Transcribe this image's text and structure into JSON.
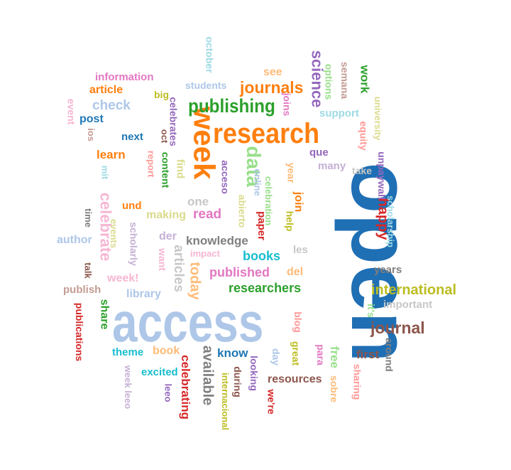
{
  "words": [
    {
      "text": "open",
      "color": "#1f6fb4"
    },
    {
      "text": "access",
      "color": "#aec7e8"
    },
    {
      "text": "week",
      "color": "#ff7f0e"
    },
    {
      "text": "research",
      "color": "#ff7f0e"
    },
    {
      "text": "publishing",
      "color": "#2ca02c"
    },
    {
      "text": "journals",
      "color": "#ff7f0e"
    },
    {
      "text": "data",
      "color": "#98df8a"
    },
    {
      "text": "journal",
      "color": "#8c564b"
    },
    {
      "text": "international",
      "color": "#bcbd22"
    },
    {
      "text": "science",
      "color": "#9467bd"
    },
    {
      "text": "researchers",
      "color": "#2ca02c"
    },
    {
      "text": "published",
      "color": "#e377c2"
    },
    {
      "text": "books",
      "color": "#17becf"
    },
    {
      "text": "knowledge",
      "color": "#7f7f7f"
    },
    {
      "text": "happy",
      "color": "#d62728"
    },
    {
      "text": "celebrate",
      "color": "#f7b6d2"
    },
    {
      "text": "available",
      "color": "#7f7f7f"
    },
    {
      "text": "celebrating",
      "color": "#d62728"
    },
    {
      "text": "resources",
      "color": "#8c564b"
    },
    {
      "text": "information",
      "color": "#e377c2"
    },
    {
      "text": "article",
      "color": "#ff7f0e"
    },
    {
      "text": "check",
      "color": "#aec7e8"
    },
    {
      "text": "students",
      "color": "#aec7e8"
    },
    {
      "text": "post",
      "color": "#1f77b4"
    },
    {
      "text": "next",
      "color": "#1f77b4"
    },
    {
      "text": "learn",
      "color": "#ff7f0e"
    },
    {
      "text": "und",
      "color": "#ff7f0e"
    },
    {
      "text": "making",
      "color": "#dbdb8d"
    },
    {
      "text": "read",
      "color": "#e377c2"
    },
    {
      "text": "one",
      "color": "#c7c7c7"
    },
    {
      "text": "author",
      "color": "#aec7e8"
    },
    {
      "text": "der",
      "color": "#c5b0d5"
    },
    {
      "text": "impact",
      "color": "#f7b6d2"
    },
    {
      "text": "week!",
      "color": "#f7b6d2"
    },
    {
      "text": "library",
      "color": "#aec7e8"
    },
    {
      "text": "publish",
      "color": "#c49c94"
    },
    {
      "text": "theme",
      "color": "#17becf"
    },
    {
      "text": "book",
      "color": "#ffbb78"
    },
    {
      "text": "know",
      "color": "#1f77b4"
    },
    {
      "text": "excited",
      "color": "#17becf"
    },
    {
      "text": "first",
      "color": "#8c564b"
    },
    {
      "text": "years",
      "color": "#7f7f7f"
    },
    {
      "text": "important",
      "color": "#c7c7c7"
    },
    {
      "text": "support",
      "color": "#9edae5"
    },
    {
      "text": "que",
      "color": "#9467bd"
    },
    {
      "text": "many",
      "color": "#c5b0d5"
    },
    {
      "text": "take",
      "color": "#c7c7c7"
    },
    {
      "text": "see",
      "color": "#ffbb78"
    },
    {
      "text": "big",
      "color": "#bcbd22"
    },
    {
      "text": "les",
      "color": "#c7c7c7"
    },
    {
      "text": "del",
      "color": "#ffbb78"
    },
    {
      "text": "october",
      "color": "#9edae5"
    },
    {
      "text": "event",
      "color": "#f7b6d2"
    },
    {
      "text": "ios",
      "color": "#c49c94"
    },
    {
      "text": "mit",
      "color": "#9edae5"
    },
    {
      "text": "report",
      "color": "#ff9896"
    },
    {
      "text": "oct",
      "color": "#8c564b"
    },
    {
      "text": "content",
      "color": "#2ca02c"
    },
    {
      "text": "celebrates",
      "color": "#9467bd"
    },
    {
      "text": "find",
      "color": "#dbdb8d"
    },
    {
      "text": "acceso",
      "color": "#9467bd"
    },
    {
      "text": "online",
      "color": "#aec7e8"
    },
    {
      "text": "abierto",
      "color": "#dbdb8d"
    },
    {
      "text": "celebration",
      "color": "#98df8a"
    },
    {
      "text": "paper",
      "color": "#d62728"
    },
    {
      "text": "help",
      "color": "#bcbd22"
    },
    {
      "text": "year",
      "color": "#ffbb78"
    },
    {
      "text": "join",
      "color": "#ff7f0e"
    },
    {
      "text": "joins",
      "color": "#e377c2"
    },
    {
      "text": "options",
      "color": "#98df8a"
    },
    {
      "text": "semana",
      "color": "#c49c94"
    },
    {
      "text": "work",
      "color": "#2ca02c"
    },
    {
      "text": "university",
      "color": "#dbdb8d"
    },
    {
      "text": "equity",
      "color": "#ff9896"
    },
    {
      "text": "unpaywall",
      "color": "#9467bd"
    },
    {
      "text": "scholarship",
      "color": "#9edae5"
    },
    {
      "text": "time",
      "color": "#7f7f7f"
    },
    {
      "text": "events",
      "color": "#dbdb8d"
    },
    {
      "text": "scholarly",
      "color": "#c5b0d5"
    },
    {
      "text": "want",
      "color": "#f7b6d2"
    },
    {
      "text": "articles",
      "color": "#c7c7c7"
    },
    {
      "text": "today",
      "color": "#ffbb78"
    },
    {
      "text": "talk",
      "color": "#8c564b"
    },
    {
      "text": "publications",
      "color": "#d62728"
    },
    {
      "text": "share",
      "color": "#2ca02c"
    },
    {
      "text": "week leeo",
      "color": "#c5b0d5"
    },
    {
      "text": "leeo",
      "color": "#9467bd"
    },
    {
      "text": "during",
      "color": "#8c564b"
    },
    {
      "text": "looking",
      "color": "#9467bd"
    },
    {
      "text": "internacional",
      "color": "#bcbd22"
    },
    {
      "text": "we're",
      "color": "#d62728"
    },
    {
      "text": "day",
      "color": "#aec7e8"
    },
    {
      "text": "great",
      "color": "#bcbd22"
    },
    {
      "text": "blog",
      "color": "#ff9896"
    },
    {
      "text": "para",
      "color": "#e377c2"
    },
    {
      "text": "sobre",
      "color": "#ffbb78"
    },
    {
      "text": "free",
      "color": "#98df8a"
    },
    {
      "text": "sharing",
      "color": "#ff9896"
    },
    {
      "text": "around",
      "color": "#7f7f7f"
    },
    {
      "text": "it's",
      "color": "#98df8a"
    }
  ]
}
